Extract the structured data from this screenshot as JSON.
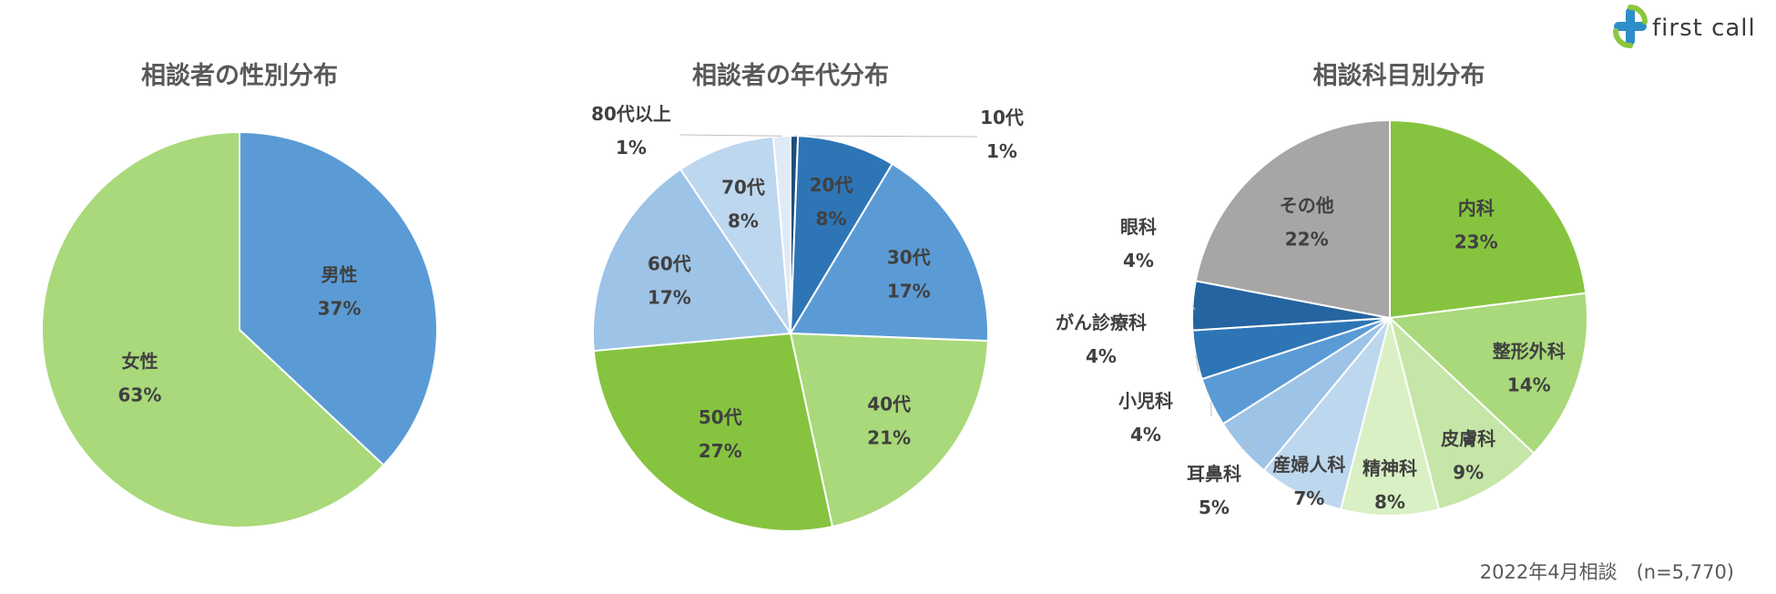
{
  "brand": {
    "name": "first call",
    "icon": "plus-cross-logo-icon",
    "colors": {
      "blue": "#2e8ec8",
      "green": "#8cc63f"
    }
  },
  "footer": "2022年4月相談　(n=5,770)",
  "chart_data": [
    {
      "type": "pie",
      "title": "相談者の性別分布",
      "slices": [
        {
          "label": "男性",
          "pct": "37%",
          "value": 37,
          "color": "#5b9bd5"
        },
        {
          "label": "女性",
          "pct": "63%",
          "value": 63,
          "color": "#a9d97a"
        }
      ]
    },
    {
      "type": "pie",
      "title": "相談者の年代分布",
      "slices": [
        {
          "label": "10代",
          "pct": "1%",
          "value": 0.6,
          "color": "#1f4e79"
        },
        {
          "label": "20代",
          "pct": "8%",
          "value": 8,
          "color": "#2e75b6"
        },
        {
          "label": "30代",
          "pct": "17%",
          "value": 17,
          "color": "#5b9bd5"
        },
        {
          "label": "40代",
          "pct": "21%",
          "value": 21,
          "color": "#a9d97a"
        },
        {
          "label": "50代",
          "pct": "27%",
          "value": 27,
          "color": "#86c43f"
        },
        {
          "label": "60代",
          "pct": "17%",
          "value": 17,
          "color": "#9dc3e6"
        },
        {
          "label": "70代",
          "pct": "8%",
          "value": 8,
          "color": "#bdd7ee"
        },
        {
          "label": "80代以上",
          "pct": "1%",
          "value": 1.4,
          "color": "#deebf7"
        }
      ]
    },
    {
      "type": "pie",
      "title": "相談科目別分布",
      "slices": [
        {
          "label": "内科",
          "pct": "23%",
          "value": 23,
          "color": "#86c43f"
        },
        {
          "label": "整形外科",
          "pct": "14%",
          "value": 14,
          "color": "#a9d97a"
        },
        {
          "label": "皮膚科",
          "pct": "9%",
          "value": 9,
          "color": "#c5e6a6"
        },
        {
          "label": "精神科",
          "pct": "8%",
          "value": 8,
          "color": "#d9f0c4"
        },
        {
          "label": "産婦人科",
          "pct": "7%",
          "value": 7,
          "color": "#bdd7ee"
        },
        {
          "label": "耳鼻科",
          "pct": "5%",
          "value": 5,
          "color": "#9dc3e6"
        },
        {
          "label": "小児科",
          "pct": "4%",
          "value": 4,
          "color": "#5b9bd5"
        },
        {
          "label": "がん診療科",
          "pct": "4%",
          "value": 4,
          "color": "#2e75b6"
        },
        {
          "label": "眼科",
          "pct": "4%",
          "value": 4,
          "color": "#2464a0"
        },
        {
          "label": "その他",
          "pct": "22%",
          "value": 22,
          "color": "#a6a6a6"
        }
      ]
    }
  ]
}
